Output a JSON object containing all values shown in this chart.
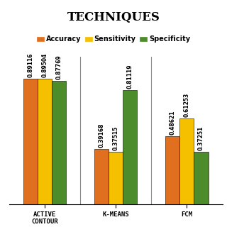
{
  "title": "TECHNIQUES",
  "categories": [
    "ACTIVE\nCONTOUR",
    "K-MEANS",
    "FCM"
  ],
  "metrics": [
    "Accuracy",
    "Sensitivity",
    "Specificity"
  ],
  "values": [
    [
      0.89116,
      0.89504,
      0.87769
    ],
    [
      0.39168,
      0.37515,
      0.81119
    ],
    [
      0.48621,
      0.61253,
      0.37251
    ]
  ],
  "colors": [
    "#E07020",
    "#F5C000",
    "#4C8C2B"
  ],
  "bar_width": 0.2,
  "ylim": [
    0,
    1.05
  ],
  "title_fontsize": 12,
  "tick_fontsize": 6.5,
  "legend_fontsize": 7,
  "value_fontsize": 5.5,
  "background_color": "#ffffff"
}
